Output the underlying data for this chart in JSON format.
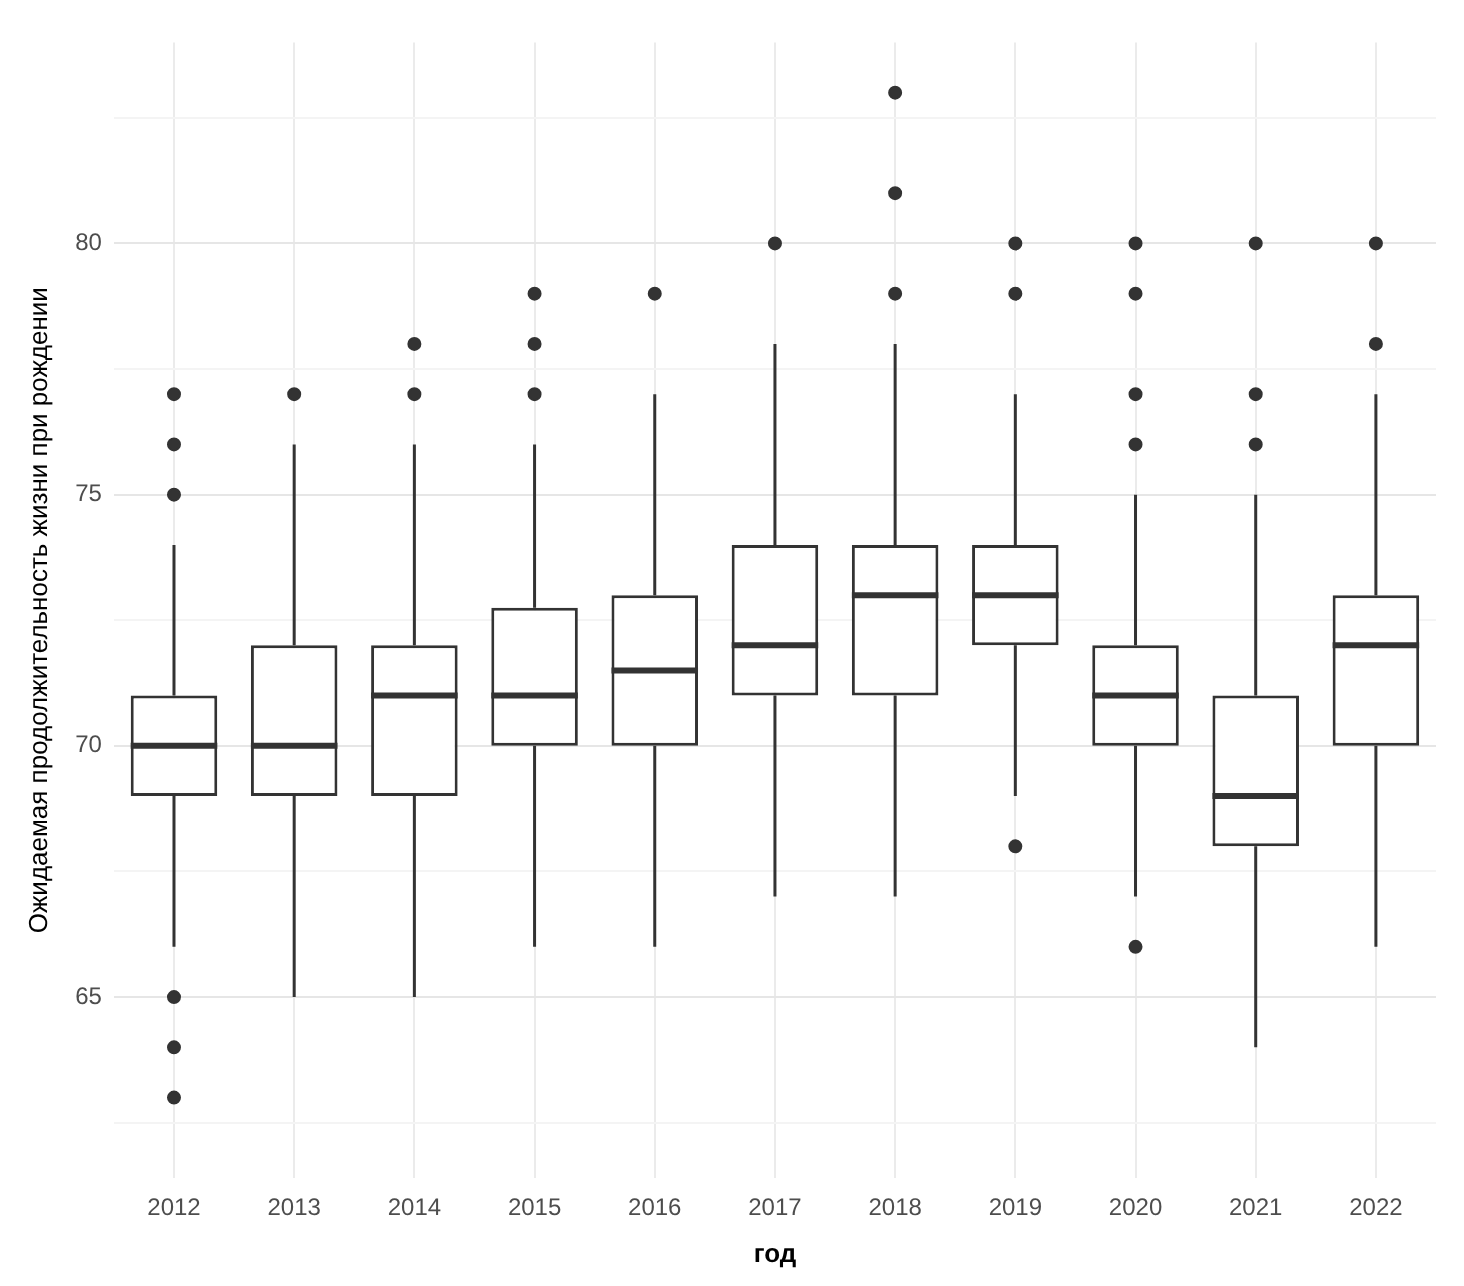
{
  "chart_data": {
    "type": "box",
    "xlabel": "год",
    "ylabel": "Ожидаемая продолжительность жизни при рождении",
    "categories": [
      "2012",
      "2013",
      "2014",
      "2015",
      "2016",
      "2017",
      "2018",
      "2019",
      "2020",
      "2021",
      "2022"
    ],
    "boxes": [
      {
        "low": 66,
        "q1": 69,
        "median": 70,
        "q3": 71,
        "high": 74,
        "outliers": [
          63,
          64,
          65,
          75,
          76,
          77
        ]
      },
      {
        "low": 65,
        "q1": 69,
        "median": 70,
        "q3": 72,
        "high": 76,
        "outliers": [
          77
        ]
      },
      {
        "low": 65,
        "q1": 69,
        "median": 71,
        "q3": 72,
        "high": 76,
        "outliers": [
          77,
          78
        ]
      },
      {
        "low": 66,
        "q1": 70,
        "median": 71,
        "q3": 72.75,
        "high": 76,
        "outliers": [
          77,
          78,
          79
        ]
      },
      {
        "low": 66,
        "q1": 70,
        "median": 71.5,
        "q3": 73,
        "high": 77,
        "outliers": [
          79
        ]
      },
      {
        "low": 67,
        "q1": 71,
        "median": 72,
        "q3": 74,
        "high": 78,
        "outliers": [
          80
        ]
      },
      {
        "low": 67,
        "q1": 71,
        "median": 73,
        "q3": 74,
        "high": 78,
        "outliers": [
          79,
          81,
          83
        ]
      },
      {
        "low": 69,
        "q1": 72,
        "median": 73,
        "q3": 74,
        "high": 77,
        "outliers": [
          68,
          79,
          80
        ]
      },
      {
        "low": 67,
        "q1": 70,
        "median": 71,
        "q3": 72,
        "high": 75,
        "outliers": [
          66,
          76,
          77,
          79,
          80
        ]
      },
      {
        "low": 64,
        "q1": 68,
        "median": 69,
        "q3": 71,
        "high": 75,
        "outliers": [
          76,
          77,
          80
        ]
      },
      {
        "low": 66,
        "q1": 70,
        "median": 72,
        "q3": 73,
        "high": 77,
        "outliers": [
          78,
          80
        ]
      }
    ],
    "color": "#333333",
    "ylim": [
      61.4,
      84
    ],
    "yticks": [
      {
        "value": 62.5,
        "label": null
      },
      65,
      {
        "value": 67.5,
        "label": null
      },
      70,
      {
        "value": 72.5,
        "label": null
      },
      75,
      {
        "value": 77.5,
        "label": null
      },
      80,
      {
        "value": 82.5,
        "label": null
      }
    ],
    "grid": true,
    "legend": false
  }
}
